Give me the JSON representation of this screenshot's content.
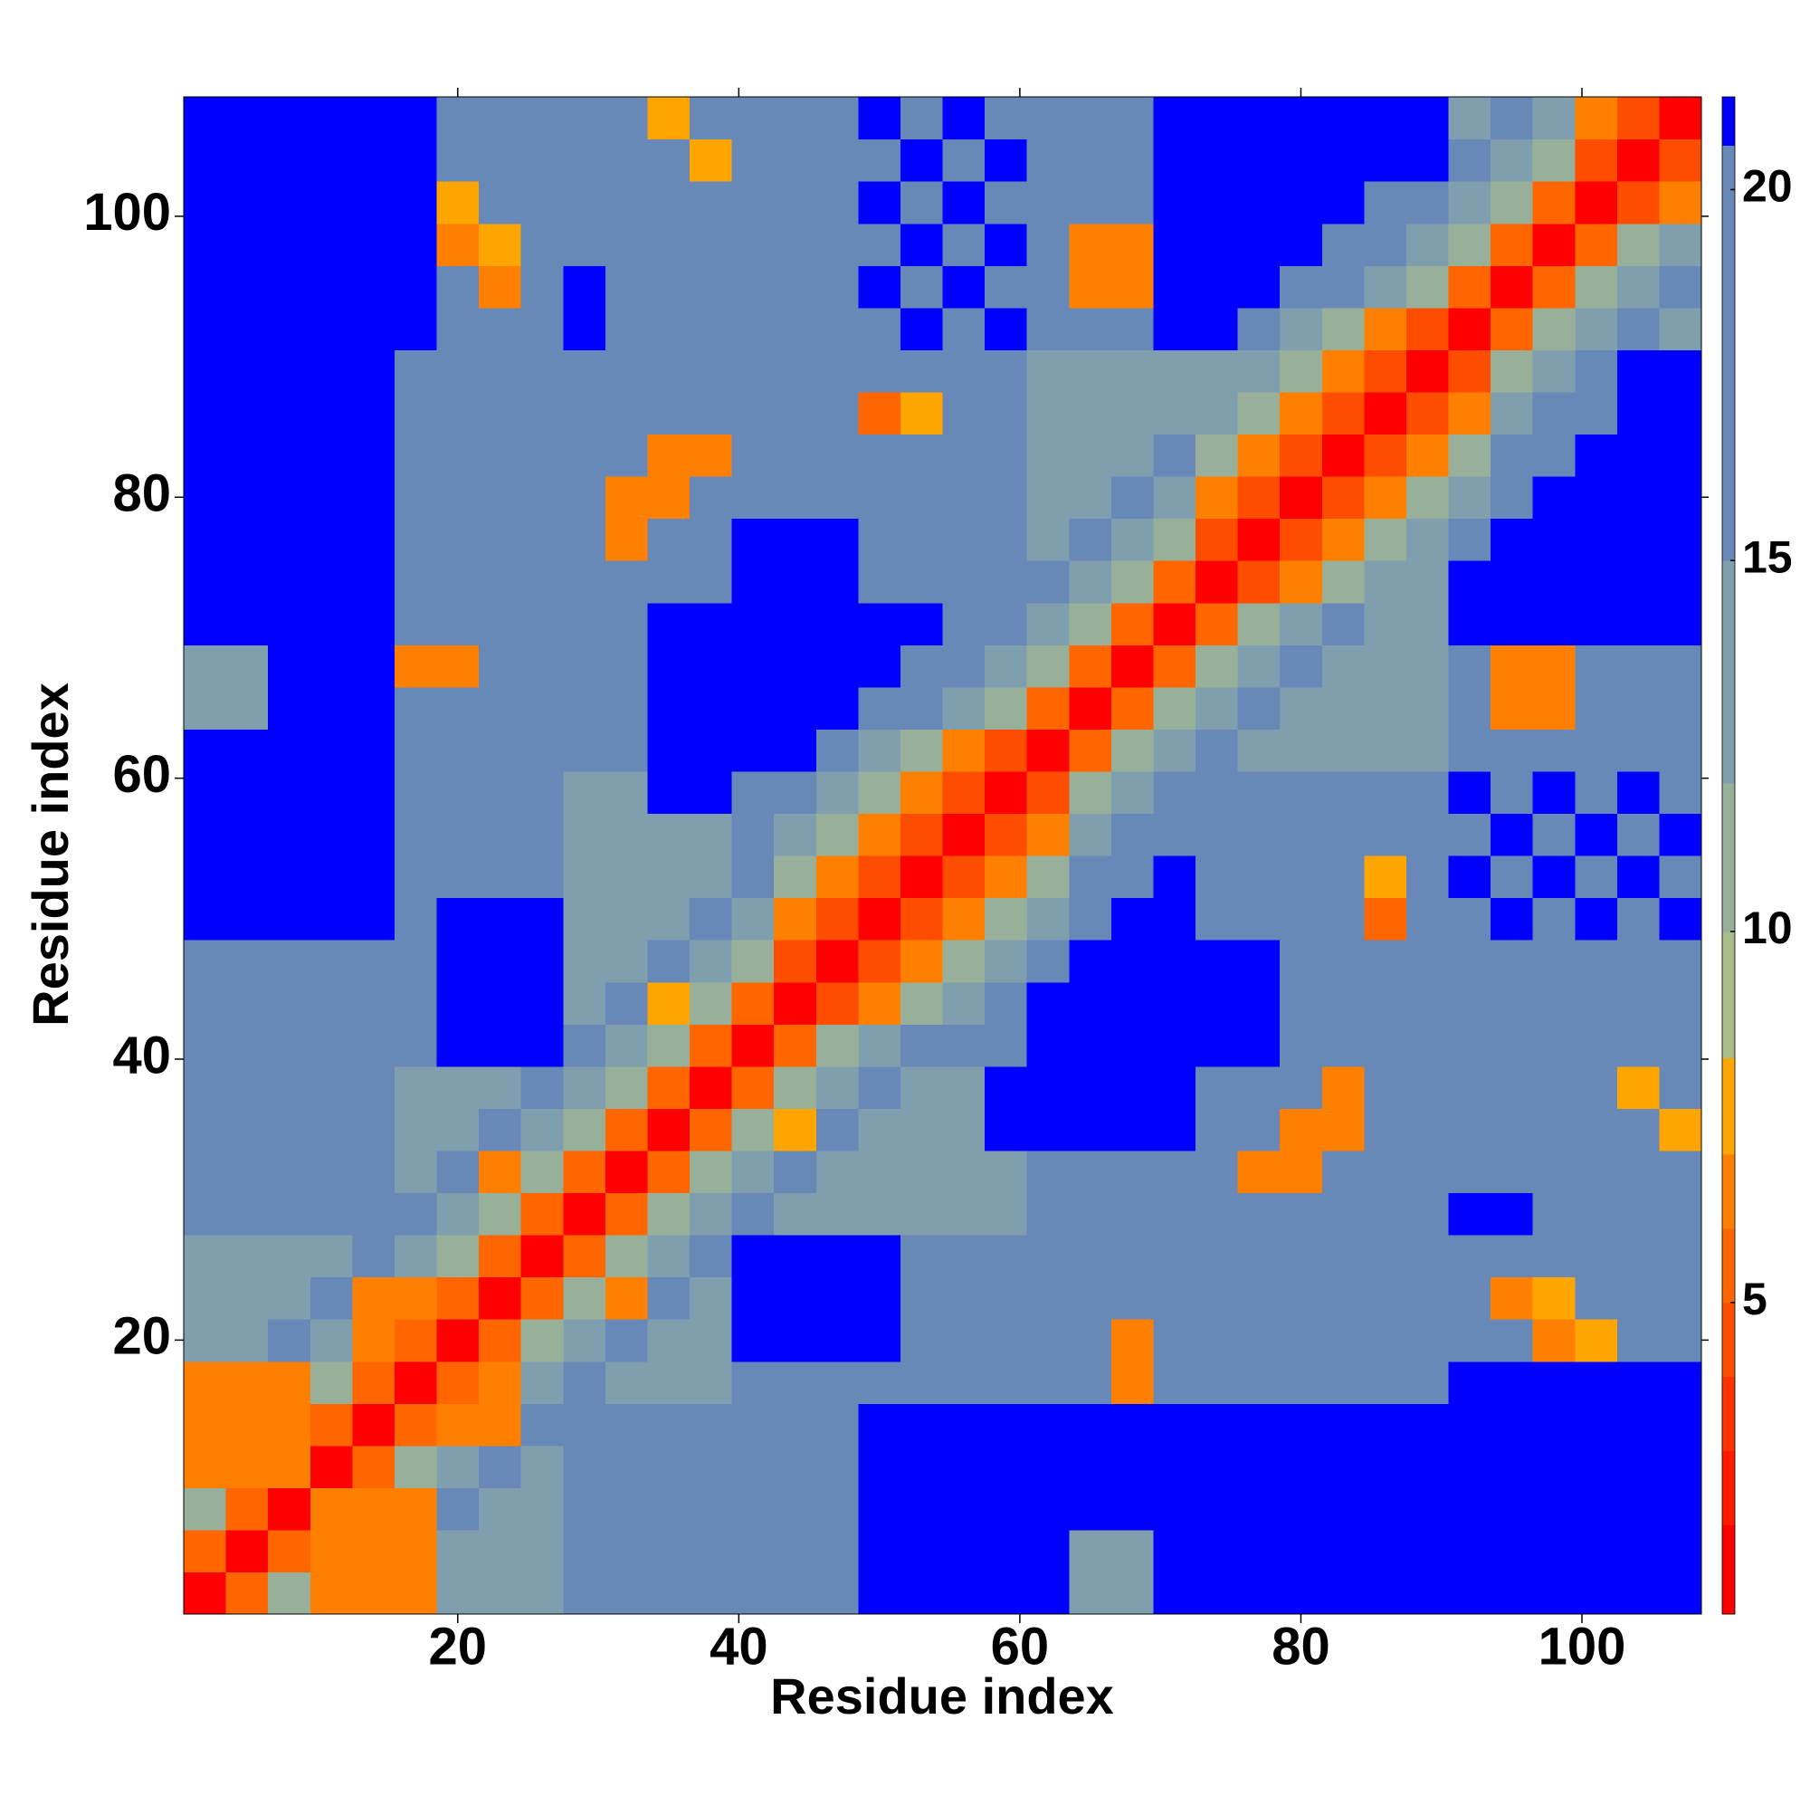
{
  "chart_data": {
    "type": "heatmap",
    "x_label": "Residue index",
    "y_label": "Residue index",
    "xlim": [
      0.5,
      108.5
    ],
    "ylim": [
      0.5,
      108.5
    ],
    "xticks": [
      20,
      40,
      60,
      80,
      100
    ],
    "yticks": [
      20,
      40,
      60,
      80,
      100
    ],
    "zlim": [
      0.8,
      21.25
    ],
    "zticks": [
      5,
      10,
      15,
      20
    ],
    "colorscale": [
      [
        2,
        "#ff0000"
      ],
      [
        3,
        "#ff1a00"
      ],
      [
        4,
        "#ff3300"
      ],
      [
        5,
        "#ff4d00"
      ],
      [
        6,
        "#ff6600"
      ],
      [
        7,
        "#ff8000"
      ],
      [
        8.3,
        "#ffa500"
      ],
      [
        10,
        "#a9bd8a"
      ],
      [
        12,
        "#98b09a"
      ],
      [
        15,
        "#7f9fae"
      ],
      [
        20.6,
        "#6888b8"
      ],
      [
        21.25,
        "#0000ff"
      ]
    ],
    "x": [
      2,
      5,
      8,
      11,
      14,
      17,
      20,
      23,
      26,
      29,
      32,
      35,
      38,
      41,
      44,
      47,
      50,
      53,
      56,
      59,
      62,
      65,
      68,
      71,
      74,
      77,
      80,
      83,
      86,
      89,
      92,
      95,
      98,
      101,
      104,
      107
    ],
    "y": [
      2,
      5,
      8,
      11,
      14,
      17,
      20,
      23,
      26,
      29,
      32,
      35,
      38,
      41,
      44,
      47,
      50,
      53,
      56,
      59,
      62,
      65,
      68,
      71,
      74,
      77,
      80,
      83,
      86,
      89,
      92,
      95,
      98,
      101,
      104,
      107
    ],
    "z": [
      [
        2,
        6,
        11,
        7,
        7,
        7,
        15,
        15,
        15,
        16,
        16,
        16,
        16,
        17,
        17,
        17,
        25,
        25,
        25,
        25,
        25,
        15,
        15,
        25,
        25,
        25,
        25,
        25,
        25,
        25,
        25,
        25,
        25,
        25,
        25,
        25
      ],
      [
        6,
        2,
        6,
        7,
        7,
        7,
        15,
        15,
        15,
        16,
        16,
        16,
        16,
        17,
        17,
        17,
        25,
        25,
        25,
        25,
        25,
        15,
        15,
        25,
        25,
        25,
        25,
        25,
        25,
        25,
        25,
        25,
        25,
        25,
        25,
        25
      ],
      [
        11,
        6,
        2,
        7,
        7,
        7,
        16,
        15,
        15,
        16,
        16,
        16,
        16,
        17,
        17,
        17,
        25,
        25,
        25,
        25,
        25,
        25,
        25,
        25,
        25,
        25,
        25,
        25,
        25,
        25,
        25,
        25,
        25,
        25,
        25,
        25
      ],
      [
        7,
        7,
        7,
        2,
        6,
        11,
        14,
        16,
        15,
        16,
        16,
        16,
        16,
        17,
        17,
        17,
        25,
        25,
        25,
        25,
        25,
        25,
        25,
        25,
        25,
        25,
        25,
        25,
        25,
        25,
        25,
        25,
        25,
        25,
        25,
        25
      ],
      [
        7,
        7,
        7,
        6,
        2,
        6,
        7,
        7,
        16,
        16,
        16,
        16,
        16,
        17,
        17,
        17,
        25,
        25,
        25,
        25,
        25,
        25,
        25,
        25,
        25,
        25,
        25,
        25,
        25,
        25,
        25,
        25,
        25,
        25,
        25,
        25
      ],
      [
        7,
        7,
        7,
        11,
        6,
        2,
        6,
        7,
        14,
        16,
        13,
        13,
        13,
        17,
        17,
        17,
        17,
        17,
        17,
        17,
        17,
        17,
        7,
        17,
        17,
        17,
        17,
        17,
        17,
        17,
        25,
        25,
        25,
        25,
        25,
        25
      ],
      [
        15,
        15,
        16,
        14,
        7,
        6,
        2,
        6,
        11,
        14,
        16,
        13,
        13,
        25,
        25,
        25,
        25,
        17,
        17,
        17,
        17,
        17,
        7,
        17,
        17,
        17,
        17,
        17,
        17,
        17,
        17,
        17,
        7,
        8,
        17,
        17
      ],
      [
        15,
        15,
        15,
        16,
        7,
        7,
        6,
        2,
        6,
        11,
        7,
        16,
        13,
        25,
        25,
        25,
        25,
        17,
        17,
        17,
        17,
        17,
        17,
        17,
        17,
        17,
        17,
        17,
        17,
        17,
        17,
        7,
        8,
        17,
        17,
        17
      ],
      [
        15,
        15,
        15,
        15,
        16,
        14,
        11,
        6,
        2,
        6,
        11,
        14,
        16,
        25,
        25,
        25,
        25,
        17,
        17,
        17,
        17,
        17,
        17,
        17,
        17,
        17,
        17,
        17,
        17,
        17,
        17,
        17,
        17,
        17,
        17,
        17
      ],
      [
        16,
        16,
        16,
        16,
        16,
        16,
        14,
        11,
        6,
        2,
        6,
        11,
        14,
        16,
        15,
        15,
        15,
        15,
        15,
        15,
        17,
        17,
        17,
        17,
        16,
        16,
        16,
        16,
        16,
        16,
        25,
        25,
        17,
        17,
        17,
        17
      ],
      [
        16,
        16,
        16,
        16,
        16,
        13,
        16,
        7,
        11,
        6,
        2,
        6,
        11,
        14,
        16,
        15,
        15,
        15,
        15,
        15,
        17,
        17,
        17,
        17,
        16,
        7,
        7,
        16,
        16,
        16,
        17,
        17,
        17,
        17,
        17,
        17
      ],
      [
        16,
        16,
        16,
        16,
        16,
        13,
        13,
        16,
        14,
        11,
        6,
        2,
        6,
        11,
        8,
        16,
        15,
        15,
        15,
        25,
        25,
        25,
        25,
        25,
        16,
        16,
        7,
        7,
        16,
        16,
        17,
        17,
        17,
        17,
        17,
        8
      ],
      [
        16,
        16,
        16,
        16,
        16,
        13,
        13,
        13,
        16,
        14,
        11,
        6,
        2,
        6,
        11,
        14,
        16,
        15,
        15,
        25,
        25,
        25,
        25,
        25,
        16,
        16,
        16,
        7,
        16,
        16,
        17,
        17,
        17,
        17,
        8,
        17
      ],
      [
        17,
        17,
        17,
        17,
        17,
        17,
        25,
        25,
        25,
        16,
        14,
        11,
        6,
        2,
        6,
        11,
        14,
        16,
        16,
        16,
        25,
        25,
        25,
        25,
        25,
        25,
        16,
        16,
        16,
        16,
        17,
        17,
        17,
        17,
        17,
        17
      ],
      [
        17,
        17,
        17,
        17,
        17,
        17,
        25,
        25,
        25,
        15,
        16,
        8,
        11,
        6,
        2,
        5,
        7,
        11,
        14,
        16,
        25,
        25,
        25,
        25,
        25,
        25,
        16,
        16,
        16,
        16,
        17,
        17,
        17,
        17,
        17,
        17
      ],
      [
        17,
        17,
        17,
        17,
        17,
        17,
        25,
        25,
        25,
        15,
        15,
        16,
        14,
        11,
        5,
        2,
        5,
        7,
        11,
        14,
        16,
        25,
        25,
        25,
        25,
        25,
        16,
        16,
        16,
        16,
        17,
        17,
        17,
        17,
        17,
        17
      ],
      [
        25,
        25,
        25,
        25,
        25,
        17,
        25,
        25,
        25,
        15,
        15,
        15,
        16,
        14,
        7,
        5,
        2,
        5,
        7,
        11,
        14,
        16,
        25,
        25,
        16,
        16,
        16,
        16,
        6,
        16,
        17,
        25,
        17,
        25,
        17,
        25
      ],
      [
        25,
        25,
        25,
        25,
        25,
        17,
        17,
        17,
        17,
        15,
        15,
        15,
        15,
        16,
        11,
        7,
        5,
        2,
        5,
        7,
        11,
        16,
        16,
        25,
        16,
        16,
        16,
        16,
        8,
        16,
        25,
        17,
        25,
        17,
        25,
        17
      ],
      [
        25,
        25,
        25,
        25,
        25,
        17,
        17,
        17,
        17,
        15,
        15,
        15,
        15,
        16,
        14,
        11,
        7,
        5,
        2,
        5,
        7,
        14,
        16,
        16,
        16,
        16,
        16,
        16,
        16,
        16,
        17,
        25,
        17,
        25,
        17,
        25
      ],
      [
        25,
        25,
        25,
        25,
        25,
        17,
        17,
        17,
        17,
        15,
        15,
        25,
        25,
        16,
        16,
        14,
        11,
        7,
        5,
        2,
        5,
        11,
        14,
        16,
        16,
        16,
        16,
        16,
        16,
        16,
        25,
        17,
        25,
        17,
        25,
        17
      ],
      [
        25,
        25,
        25,
        25,
        25,
        17,
        17,
        17,
        17,
        17,
        17,
        25,
        25,
        25,
        25,
        16,
        14,
        11,
        7,
        5,
        2,
        6,
        11,
        14,
        16,
        15,
        15,
        15,
        15,
        15,
        16,
        17,
        17,
        17,
        17,
        17
      ],
      [
        15,
        15,
        25,
        25,
        25,
        17,
        17,
        17,
        17,
        17,
        17,
        25,
        25,
        25,
        25,
        25,
        16,
        16,
        14,
        11,
        6,
        2,
        6,
        11,
        14,
        16,
        15,
        15,
        15,
        15,
        17,
        7,
        7,
        17,
        17,
        17
      ],
      [
        15,
        15,
        25,
        25,
        25,
        7,
        7,
        17,
        17,
        17,
        17,
        25,
        25,
        25,
        25,
        25,
        25,
        16,
        16,
        14,
        11,
        6,
        2,
        6,
        11,
        14,
        16,
        15,
        15,
        15,
        17,
        7,
        7,
        17,
        17,
        17
      ],
      [
        25,
        25,
        25,
        25,
        25,
        17,
        17,
        17,
        17,
        17,
        17,
        25,
        25,
        25,
        25,
        25,
        25,
        25,
        16,
        16,
        14,
        11,
        6,
        2,
        6,
        11,
        14,
        16,
        15,
        15,
        25,
        25,
        25,
        25,
        25,
        25
      ],
      [
        25,
        25,
        25,
        25,
        25,
        17,
        17,
        17,
        17,
        16,
        16,
        16,
        16,
        25,
        25,
        25,
        16,
        16,
        16,
        16,
        16,
        14,
        11,
        6,
        2,
        5,
        7,
        11,
        14,
        15,
        25,
        25,
        25,
        25,
        25,
        25
      ],
      [
        25,
        25,
        25,
        25,
        25,
        17,
        17,
        17,
        17,
        16,
        7,
        16,
        16,
        25,
        25,
        25,
        16,
        16,
        16,
        16,
        15,
        16,
        14,
        11,
        5,
        2,
        5,
        7,
        11,
        14,
        16,
        25,
        25,
        25,
        25,
        25
      ],
      [
        25,
        25,
        25,
        25,
        25,
        17,
        17,
        17,
        17,
        16,
        7,
        7,
        16,
        16,
        16,
        16,
        16,
        16,
        16,
        16,
        15,
        15,
        16,
        14,
        7,
        5,
        2,
        5,
        7,
        11,
        14,
        16,
        25,
        25,
        25,
        25
      ],
      [
        25,
        25,
        25,
        25,
        25,
        17,
        17,
        17,
        17,
        16,
        16,
        7,
        7,
        16,
        16,
        16,
        16,
        16,
        16,
        16,
        15,
        15,
        15,
        16,
        11,
        7,
        5,
        2,
        5,
        7,
        11,
        16,
        16,
        25,
        25,
        25
      ],
      [
        25,
        25,
        25,
        25,
        25,
        17,
        17,
        17,
        17,
        16,
        16,
        16,
        16,
        16,
        16,
        16,
        6,
        8,
        16,
        16,
        15,
        15,
        15,
        15,
        14,
        11,
        7,
        5,
        2,
        5,
        7,
        14,
        16,
        16,
        25,
        25
      ],
      [
        25,
        25,
        25,
        25,
        25,
        17,
        17,
        17,
        17,
        16,
        16,
        16,
        16,
        16,
        16,
        16,
        16,
        16,
        16,
        16,
        15,
        15,
        15,
        15,
        15,
        14,
        11,
        7,
        5,
        2,
        5,
        11,
        14,
        16,
        25,
        25
      ],
      [
        25,
        25,
        25,
        25,
        25,
        25,
        17,
        17,
        17,
        25,
        17,
        17,
        17,
        17,
        17,
        17,
        17,
        25,
        17,
        25,
        16,
        17,
        17,
        25,
        25,
        16,
        14,
        11,
        7,
        5,
        2,
        6,
        11,
        14,
        16,
        15
      ],
      [
        25,
        25,
        25,
        25,
        25,
        25,
        17,
        7,
        17,
        25,
        17,
        17,
        17,
        17,
        17,
        17,
        25,
        17,
        25,
        17,
        17,
        7,
        7,
        25,
        25,
        25,
        16,
        16,
        14,
        11,
        6,
        2,
        6,
        11,
        14,
        16
      ],
      [
        25,
        25,
        25,
        25,
        25,
        25,
        7,
        8,
        17,
        17,
        17,
        17,
        17,
        17,
        17,
        17,
        17,
        25,
        17,
        25,
        17,
        7,
        7,
        25,
        25,
        25,
        25,
        16,
        16,
        14,
        11,
        6,
        2,
        6,
        11,
        14
      ],
      [
        25,
        25,
        25,
        25,
        25,
        25,
        8,
        17,
        17,
        17,
        17,
        17,
        17,
        17,
        17,
        17,
        25,
        17,
        25,
        17,
        17,
        17,
        17,
        25,
        25,
        25,
        25,
        25,
        16,
        16,
        14,
        11,
        6,
        2,
        5,
        7
      ],
      [
        25,
        25,
        25,
        25,
        25,
        25,
        17,
        17,
        17,
        17,
        17,
        17,
        8,
        17,
        17,
        17,
        17,
        25,
        17,
        25,
        17,
        17,
        17,
        25,
        25,
        25,
        25,
        25,
        25,
        25,
        16,
        14,
        11,
        5,
        2,
        5
      ],
      [
        25,
        25,
        25,
        25,
        25,
        25,
        17,
        17,
        17,
        17,
        17,
        8,
        17,
        17,
        17,
        17,
        25,
        17,
        25,
        17,
        17,
        17,
        17,
        25,
        25,
        25,
        25,
        25,
        25,
        25,
        15,
        16,
        14,
        7,
        5,
        2
      ]
    ]
  }
}
